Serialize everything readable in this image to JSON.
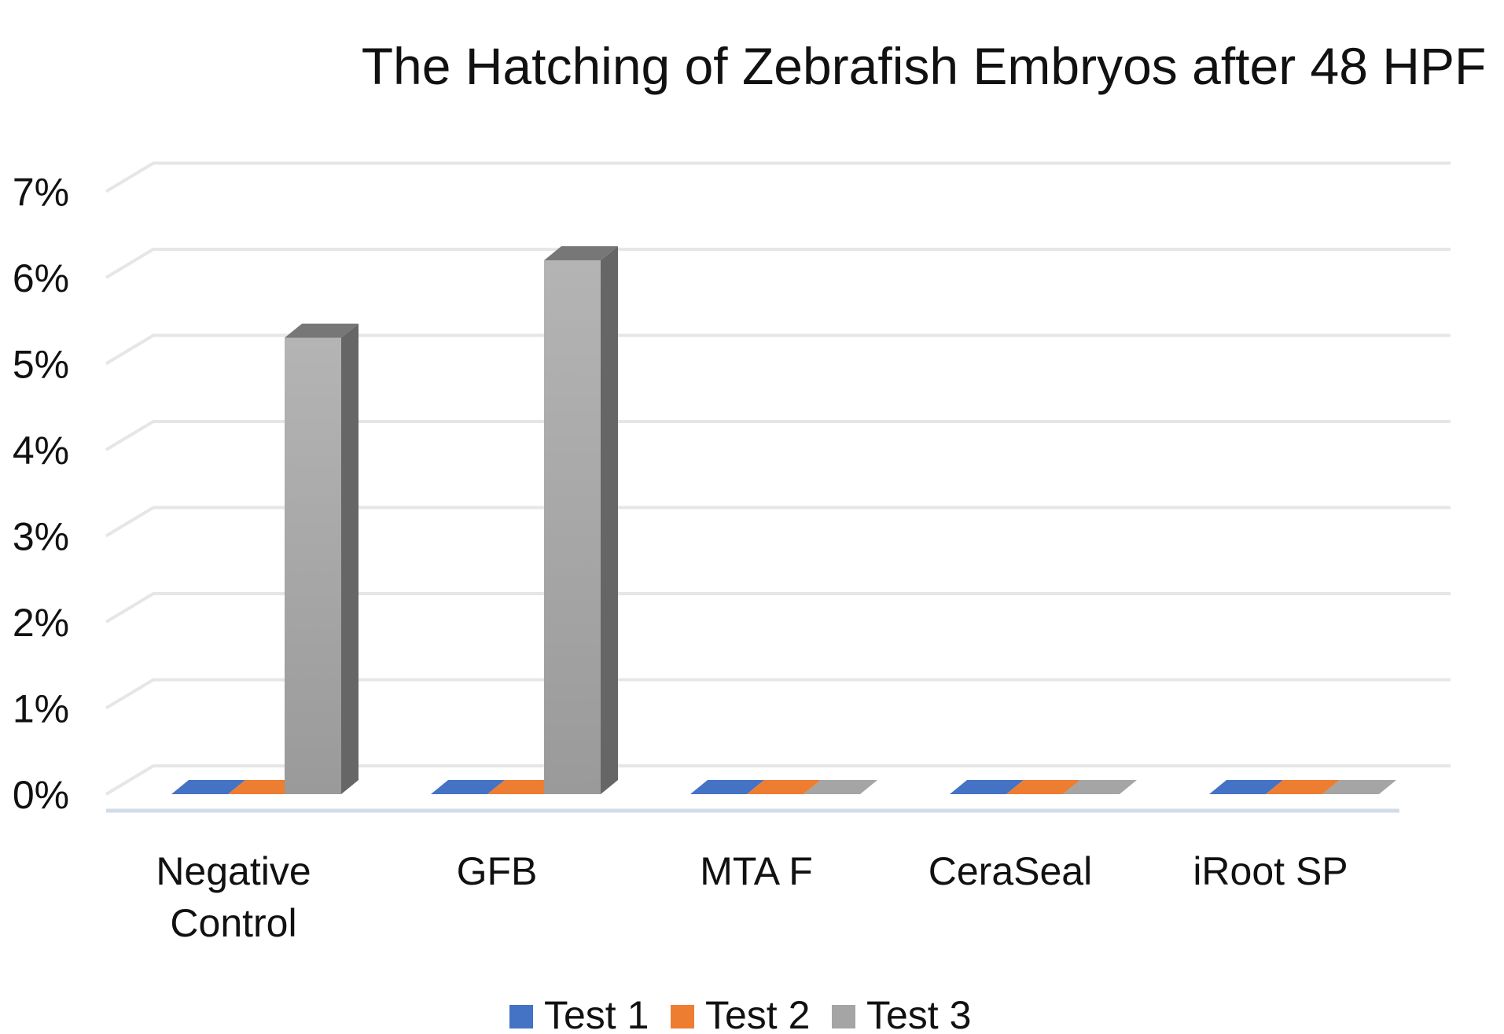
{
  "chart_data": {
    "type": "bar",
    "title": "The Hatching of Zebrafish Embryos after 48 HPF",
    "xlabel": "",
    "ylabel": "",
    "ylim": [
      0,
      0.07
    ],
    "yticks": [
      "0%",
      "1%",
      "2%",
      "3%",
      "4%",
      "5%",
      "6%",
      "7%"
    ],
    "categories": [
      [
        "Negative",
        "Control"
      ],
      [
        "GFB"
      ],
      [
        "MTA F"
      ],
      [
        "CeraSeal"
      ],
      [
        "iRoot SP"
      ]
    ],
    "series": [
      {
        "name": "Test 1",
        "color": "#4472C4",
        "values": [
          0,
          0,
          0,
          0,
          0
        ]
      },
      {
        "name": "Test 2",
        "color": "#ED7D31",
        "values": [
          0,
          0,
          0,
          0,
          0
        ]
      },
      {
        "name": "Test 3",
        "color": "#A5A5A5",
        "values": [
          0.053,
          0.062,
          0,
          0,
          0
        ]
      }
    ],
    "legend_position": "bottom",
    "grid": true
  }
}
